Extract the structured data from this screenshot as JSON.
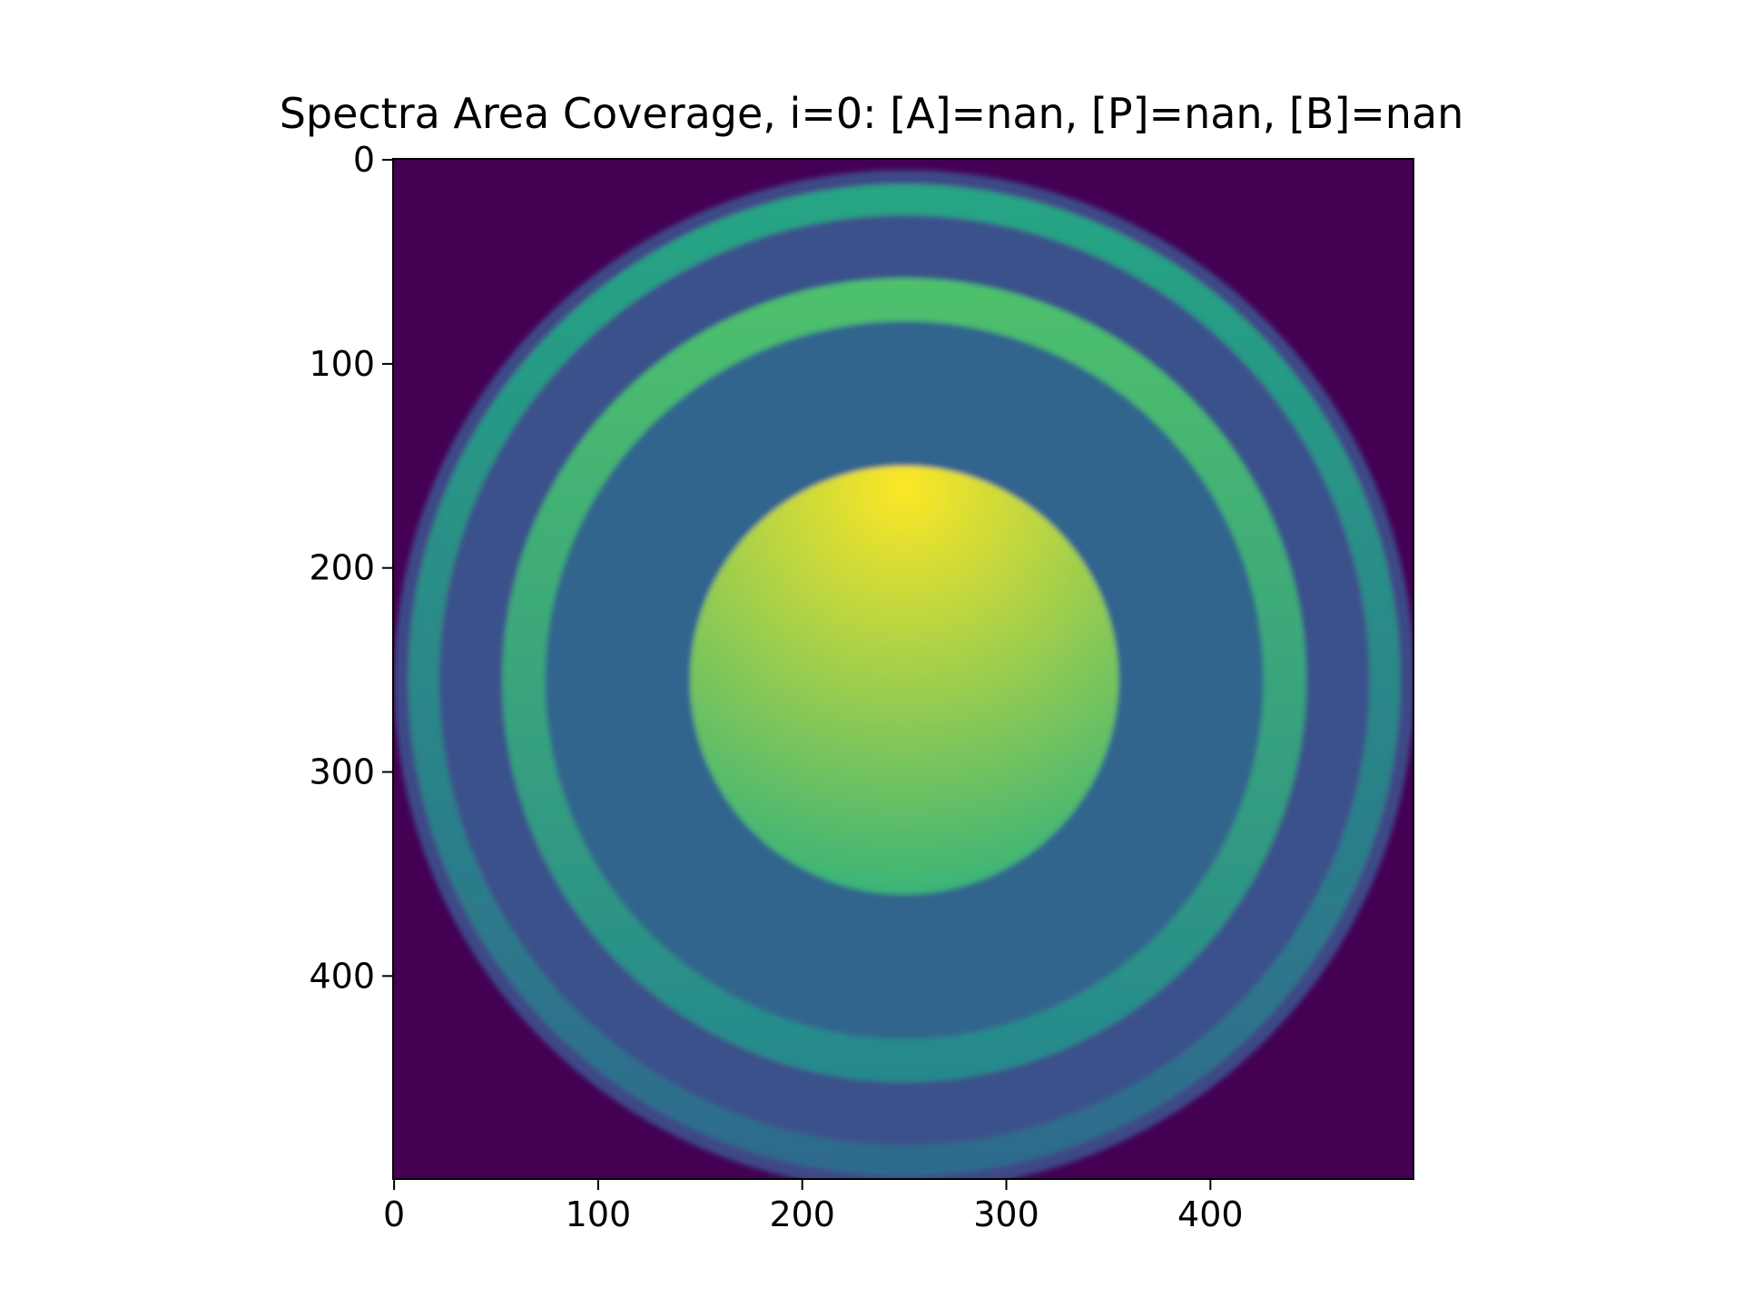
{
  "chart_data": {
    "type": "heatmap",
    "title": "Spectra Area Coverage, i=0: [A]=nan, [P]=nan, [B]=nan",
    "xlabel": "",
    "ylabel": "",
    "image_shape": [
      500,
      500
    ],
    "xlim": [
      -0.5,
      499.5
    ],
    "ylim": [
      499.5,
      -0.5
    ],
    "x_ticks": [
      0,
      100,
      200,
      300,
      400
    ],
    "y_ticks": [
      0,
      100,
      200,
      300,
      400
    ],
    "colormap": "viridis",
    "center": [
      250,
      255
    ],
    "regions": [
      {
        "name": "background",
        "r_min": 250,
        "r_max": 999,
        "value": 0.0
      },
      {
        "name": "outer-rim",
        "r_min": 243,
        "r_max": 250,
        "value": 0.22
      },
      {
        "name": "outer-ring",
        "r_min": 228,
        "r_max": 243,
        "value": 0.5
      },
      {
        "name": "outer-gap",
        "r_min": 197,
        "r_max": 228,
        "value": 0.25
      },
      {
        "name": "middle-ring",
        "r_min": 176,
        "r_max": 197,
        "value": 0.62
      },
      {
        "name": "inner-gap",
        "r_min": 105,
        "r_max": 176,
        "value": 0.33
      },
      {
        "name": "core-disk",
        "r_min": 0,
        "r_max": 105,
        "value": 0.85
      }
    ]
  }
}
